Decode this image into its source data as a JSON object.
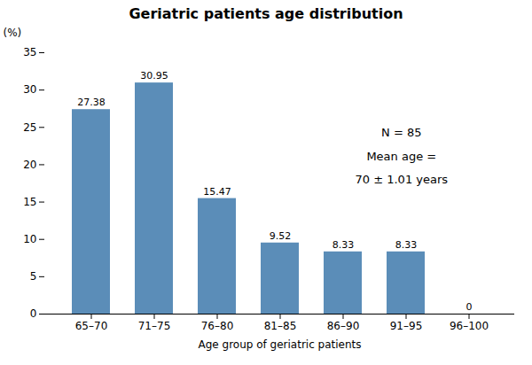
{
  "chart_data": {
    "type": "bar",
    "title": "Geriatric patients age distribution",
    "xlabel": "Age group of geriatric patients",
    "ylabel": "(%)",
    "categories": [
      "65–70",
      "71–75",
      "76–80",
      "81–85",
      "86–90",
      "91–95",
      "96–100"
    ],
    "values": [
      27.38,
      30.95,
      15.47,
      9.52,
      8.33,
      8.33,
      0
    ],
    "color": "#5b8db8",
    "ylim": [
      0,
      35
    ],
    "yticks": [
      0,
      5,
      10,
      15,
      20,
      25,
      30,
      35
    ],
    "grid": false,
    "data_labels": true,
    "annotations": [
      "N = 85",
      "Mean age =",
      "70 ± 1.01 years"
    ]
  }
}
